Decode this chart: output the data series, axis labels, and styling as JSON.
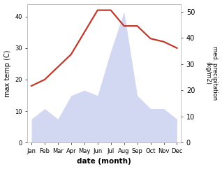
{
  "months": [
    "Jan",
    "Feb",
    "Mar",
    "Apr",
    "May",
    "Jun",
    "Jul",
    "Aug",
    "Sep",
    "Oct",
    "Nov",
    "Dec"
  ],
  "temperature": [
    18,
    20,
    24,
    28,
    35,
    42,
    42,
    37,
    37,
    33,
    32,
    30
  ],
  "precipitation": [
    9,
    13,
    9,
    18,
    20,
    18,
    35,
    50,
    18,
    13,
    13,
    9
  ],
  "temp_color": "#c0392b",
  "precip_color": "#b0b8e8",
  "ylabel_left": "max temp (C)",
  "ylabel_right": "med. precipitation\n(kg/m2)",
  "xlabel": "date (month)",
  "ylim_left": [
    0,
    44
  ],
  "ylim_right": [
    0,
    53
  ],
  "bg_color": "#ffffff",
  "temp_linewidth": 1.6,
  "precip_alpha": 0.55
}
